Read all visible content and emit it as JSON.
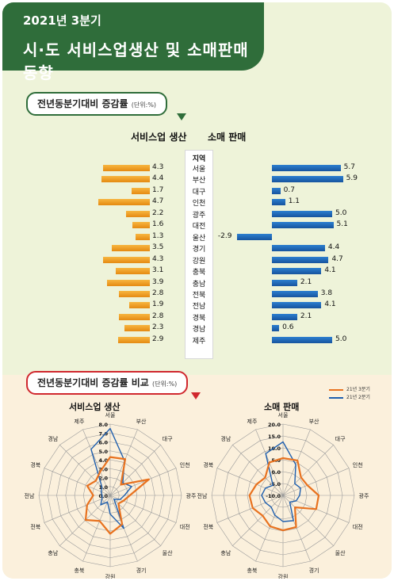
{
  "header": {
    "line1": "2021년 3분기",
    "line2": "시·도 서비스업생산 및 소매판매 동향"
  },
  "section1": {
    "title": "전년동분기대비 증감률",
    "unit": "(단위:%)"
  },
  "section2": {
    "title": "전년동분기대비 증감률 비교",
    "unit": "(단위:%)"
  },
  "columns": {
    "service": "서비스업 생산",
    "retail": "소매 판매",
    "region": "지역"
  },
  "colors": {
    "service": "#f0a020",
    "retail": "#1f63b5",
    "q3_line": "#e8721f",
    "q2_line": "#1f5fae",
    "banner": "#2f6d3a"
  },
  "chart_data": [
    {
      "type": "bar",
      "title": "서비스업 생산",
      "categories": [
        "서울",
        "부산",
        "대구",
        "인천",
        "광주",
        "대전",
        "울산",
        "경기",
        "강원",
        "충북",
        "충남",
        "전북",
        "전남",
        "경북",
        "경남",
        "제주"
      ],
      "values": [
        4.3,
        4.4,
        1.7,
        4.7,
        2.2,
        1.6,
        1.3,
        3.5,
        4.3,
        3.1,
        3.9,
        2.8,
        1.9,
        2.8,
        2.3,
        2.9
      ]
    },
    {
      "type": "bar",
      "title": "소매 판매",
      "categories": [
        "서울",
        "부산",
        "대구",
        "인천",
        "광주",
        "대전",
        "울산",
        "경기",
        "강원",
        "충북",
        "충남",
        "전북",
        "전남",
        "경북",
        "경남",
        "제주"
      ],
      "values": [
        5.7,
        5.9,
        0.7,
        1.1,
        5.0,
        5.1,
        -2.9,
        4.4,
        4.7,
        4.1,
        2.1,
        3.8,
        4.1,
        2.1,
        0.6,
        5.0
      ]
    },
    {
      "type": "radar",
      "title": "서비스업 생산",
      "categories": [
        "서울",
        "부산",
        "대구",
        "인천",
        "광주",
        "대전",
        "울산",
        "경기",
        "강원",
        "충북",
        "충남",
        "전북",
        "전남",
        "경북",
        "경남",
        "제주"
      ],
      "ticks": [
        "0.0",
        "1.0",
        "2.0",
        "3.0",
        "4.0",
        "5.0",
        "6.0",
        "7.0",
        "8.0"
      ],
      "rmax": 8.0,
      "series": [
        {
          "name": "21년 3분기",
          "values": [
            4.3,
            4.4,
            1.7,
            4.7,
            2.2,
            1.6,
            1.3,
            3.5,
            4.3,
            3.1,
            3.9,
            2.8,
            1.9,
            2.8,
            2.3,
            2.9
          ]
        },
        {
          "name": "21년 2분기",
          "values": [
            7.5,
            4.2,
            2.0,
            2.6,
            1.6,
            1.2,
            0.6,
            4.0,
            2.1,
            0.8,
            1.5,
            1.0,
            0.9,
            1.1,
            1.3,
            5.6
          ]
        }
      ]
    },
    {
      "type": "radar",
      "title": "소매 판매",
      "categories": [
        "서울",
        "부산",
        "대구",
        "인천",
        "광주",
        "대전",
        "울산",
        "경기",
        "강원",
        "충북",
        "충남",
        "전북",
        "전남",
        "경북",
        "경남",
        "제주"
      ],
      "ticks": [
        "-10.0",
        "-5.0",
        "0.0",
        "5.0",
        "10.0",
        "15.0",
        "20.0"
      ],
      "rmin": -10.0,
      "rmax": 20.0,
      "series": [
        {
          "name": "21년 3분기",
          "values": [
            5.7,
            5.9,
            0.7,
            1.1,
            5.0,
            5.1,
            -2.9,
            4.4,
            4.7,
            4.1,
            2.1,
            3.8,
            4.1,
            2.1,
            0.6,
            5.0
          ]
        },
        {
          "name": "21년 2분기",
          "values": [
            12.5,
            4.0,
            -3.0,
            -2.0,
            -3.0,
            -4.0,
            -6.0,
            1.5,
            1.0,
            -1.0,
            -3.0,
            -2.0,
            -1.0,
            -2.0,
            -4.0,
            9.0
          ]
        }
      ]
    }
  ]
}
